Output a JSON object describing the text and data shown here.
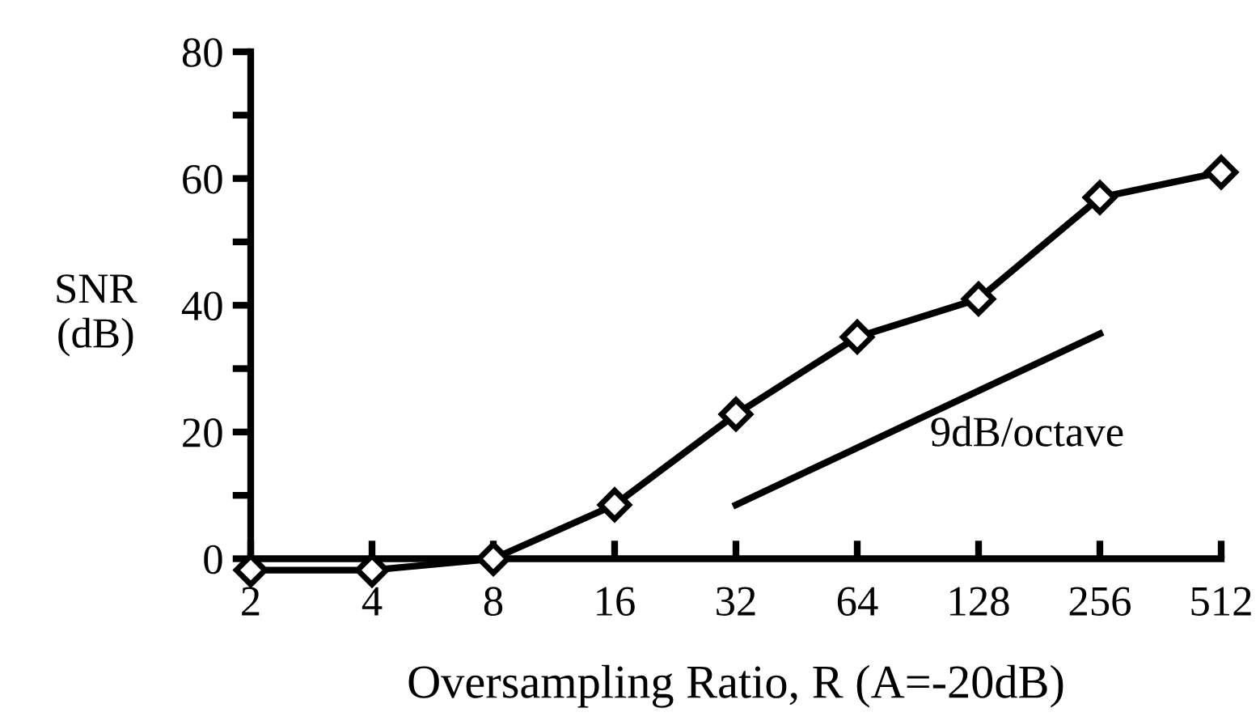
{
  "chart_data": {
    "type": "line",
    "xlabel": "Oversampling Ratio, R (A=-20dB)",
    "ylabel": "SNR\n(dB)",
    "log": "x",
    "xlim": [
      2,
      512
    ],
    "xticks": [
      2,
      4,
      8,
      16,
      32,
      64,
      128,
      256,
      512
    ],
    "ylim": [
      -3,
      80
    ],
    "yticks": [
      0,
      {
        "value": 10,
        "label": null
      },
      20,
      {
        "value": 30,
        "label": null
      },
      40,
      {
        "value": 50,
        "label": null
      },
      60,
      {
        "value": 70,
        "label": null
      },
      80
    ],
    "grid": false,
    "marker": "diamond",
    "line_style": "solid",
    "series": [
      {
        "color": "#000000",
        "x": [
          2,
          4,
          8,
          16,
          32,
          64,
          128,
          256,
          512
        ],
        "values": [
          -1.8,
          -1.8,
          0,
          8.5,
          22.8,
          35,
          41,
          57,
          61
        ]
      },
      {
        "type": "line",
        "marker": "none",
        "color": "#000000",
        "x": [
          32,
          256
        ],
        "values": [
          8.5,
          35.5
        ]
      }
    ],
    "annotations": [
      "9dB/octave"
    ]
  }
}
